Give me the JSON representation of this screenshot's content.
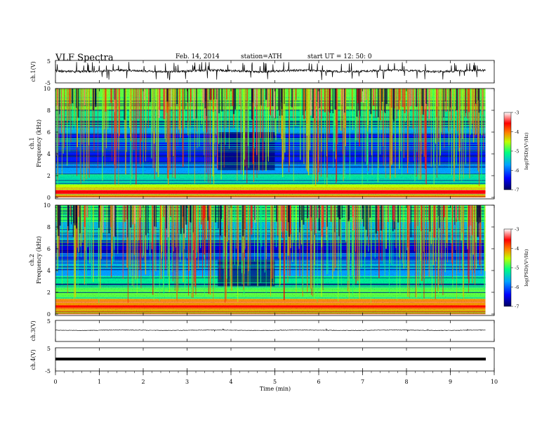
{
  "header": {
    "title": "VLF  Spectra",
    "date": "Feb. 14, 2014",
    "station": "station=ATH",
    "start": "start  UT  =   12: 50: 0"
  },
  "chart_data": {
    "type": "heatmap",
    "xlabel": "Time  (min)",
    "xlim": [
      0,
      10
    ],
    "x_ticks": [
      "0",
      "1",
      "2",
      "3",
      "4",
      "5",
      "6",
      "7",
      "8",
      "9",
      "10"
    ],
    "data_end_min": 9.8,
    "panels": {
      "ch1_waveform": {
        "ylabel": "ch.1(V)",
        "ylim": [
          -5,
          5
        ],
        "y_ticks": [
          "5",
          "-5"
        ]
      },
      "ch1_spectrogram": {
        "ylabel_channel": "ch.1",
        "ylabel": "Frequency  (kHz)",
        "ylim": [
          0,
          10
        ],
        "y_ticks": [
          "0",
          "2",
          "4",
          "6",
          "8",
          "10"
        ],
        "colorbar": {
          "label": "log(PSD)(V²/Hz)",
          "range": [
            -7,
            -3
          ],
          "ticks": [
            "-3",
            "-4",
            "-5",
            "-6",
            "-7"
          ]
        }
      },
      "ch2_spectrogram": {
        "ylabel_channel": "ch.2",
        "ylabel": "Frequency  (kHz)",
        "ylim": [
          0,
          10
        ],
        "y_ticks": [
          "0",
          "2",
          "4",
          "6",
          "8",
          "10"
        ],
        "colorbar": {
          "label": "log(PSD)(V²/Hz)",
          "range": [
            -7,
            -3
          ],
          "ticks": [
            "-3",
            "-4",
            "-5",
            "-6",
            "-7"
          ]
        }
      },
      "ch3_waveform": {
        "ylabel": "ch.3(V)",
        "ylim": [
          -5,
          5
        ],
        "y_ticks": [
          "5"
        ]
      },
      "ch4_waveform": {
        "ylabel": "ch.4(V)",
        "ylim": [
          -5,
          5
        ],
        "y_ticks": [
          "5",
          "-5"
        ]
      }
    }
  },
  "colors": {
    "colormap": [
      "#000080",
      "#0000ff",
      "#00a0ff",
      "#00ff80",
      "#c0ff00",
      "#ffff00",
      "#ff8000",
      "#ff0000",
      "#ffffff"
    ]
  }
}
